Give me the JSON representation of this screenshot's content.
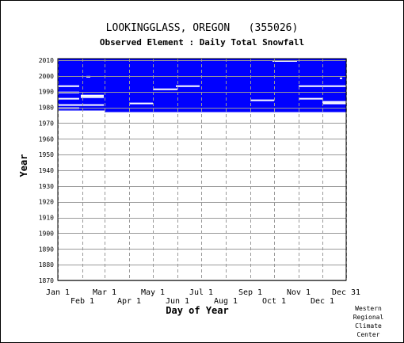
{
  "chart_data": {
    "type": "heatmap",
    "title": "LOOKINGGLASS, OREGON   (355026)",
    "subtitle": "Observed Element : Daily Total Snowfall",
    "xlabel": "Day of Year",
    "ylabel": "Year",
    "x_range_doy": [
      1,
      365
    ],
    "ylim": [
      1870,
      2011
    ],
    "y_ticks": [
      1870,
      1880,
      1890,
      1900,
      1910,
      1920,
      1930,
      1940,
      1950,
      1960,
      1970,
      1980,
      1990,
      2000,
      2010
    ],
    "x_ticks_top": [
      {
        "label": "Jan 1",
        "doy": 1
      },
      {
        "label": "Mar 1",
        "doy": 60
      },
      {
        "label": "May 1",
        "doy": 121
      },
      {
        "label": "Jul 1",
        "doy": 182
      },
      {
        "label": "Sep 1",
        "doy": 244
      },
      {
        "label": "Nov 1",
        "doy": 305
      },
      {
        "label": "Dec 31",
        "doy": 365
      }
    ],
    "x_ticks_bottom": [
      {
        "label": "Feb 1",
        "doy": 32
      },
      {
        "label": "Apr 1",
        "doy": 91
      },
      {
        "label": "Jun 1",
        "doy": 152
      },
      {
        "label": "Aug 1",
        "doy": 213
      },
      {
        "label": "Oct 1",
        "doy": 274
      },
      {
        "label": "Dec 1",
        "doy": 335
      }
    ],
    "grid": true,
    "series": [
      {
        "color": "#0000ff",
        "data_blocks": [
          {
            "from_year": 1978,
            "to_year": 2010,
            "from_doy": 1,
            "to_doy": 59
          },
          {
            "from_year": 1977,
            "to_year": 2010,
            "from_doy": 60,
            "to_doy": 365
          }
        ]
      }
    ],
    "missing_segments": [
      {
        "year": 2009,
        "from_doy": 272,
        "to_doy": 302
      },
      {
        "year": 1999,
        "from_doy": 37,
        "to_doy": 41
      },
      {
        "year": 1998,
        "from_doy": 357,
        "to_doy": 359
      },
      {
        "year": 1993,
        "from_doy": 1,
        "to_doy": 27
      },
      {
        "year": 1993,
        "from_doy": 150,
        "to_doy": 179
      },
      {
        "year": 1993,
        "from_doy": 305,
        "to_doy": 365
      },
      {
        "year": 1991,
        "from_doy": 121,
        "to_doy": 151
      },
      {
        "year": 1989,
        "from_doy": 1,
        "to_doy": 27
      },
      {
        "year": 1987,
        "from_doy": 30,
        "to_doy": 58
      },
      {
        "year": 1986,
        "from_doy": 30,
        "to_doy": 58
      },
      {
        "year": 1985,
        "from_doy": 1,
        "to_doy": 27
      },
      {
        "year": 1985,
        "from_doy": 305,
        "to_doy": 334
      },
      {
        "year": 1984,
        "from_doy": 244,
        "to_doy": 273
      },
      {
        "year": 1983,
        "from_doy": 335,
        "to_doy": 365
      },
      {
        "year": 1982,
        "from_doy": 91,
        "to_doy": 120
      },
      {
        "year": 1982,
        "from_doy": 335,
        "to_doy": 365
      },
      {
        "year": 1981,
        "from_doy": 1,
        "to_doy": 58
      },
      {
        "year": 1979,
        "from_doy": 1,
        "to_doy": 27
      }
    ]
  },
  "credit": {
    "line1": "Western",
    "line2": "Regional",
    "line3": "Climate",
    "line4": "Center"
  }
}
